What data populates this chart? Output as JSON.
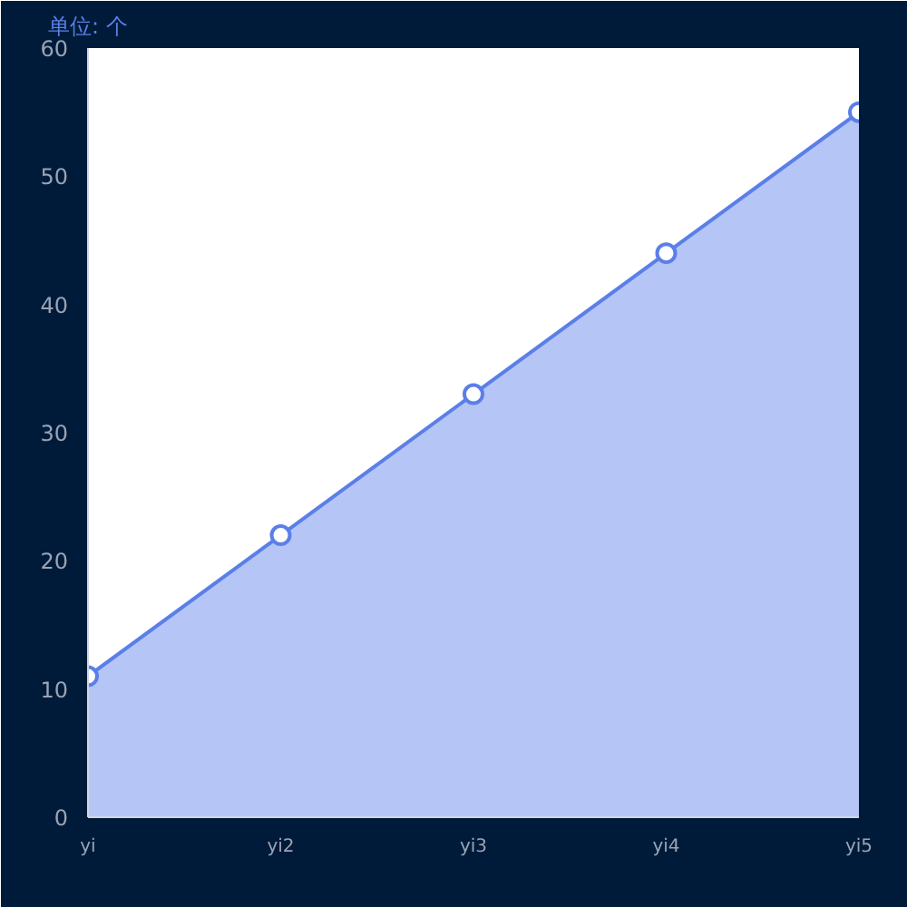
{
  "chart_data": {
    "type": "area",
    "ylabel": "单位: 个",
    "categories": [
      "yi",
      "yi2",
      "yi3",
      "yi4",
      "yi5"
    ],
    "series": [
      {
        "color": "#5b7fe8",
        "values": [
          11,
          22,
          33,
          44,
          55
        ]
      }
    ],
    "ylim": [
      0,
      60
    ],
    "yticks": [
      0,
      10,
      20,
      30,
      40,
      50,
      60
    ],
    "marker": "circle",
    "grid": false
  }
}
